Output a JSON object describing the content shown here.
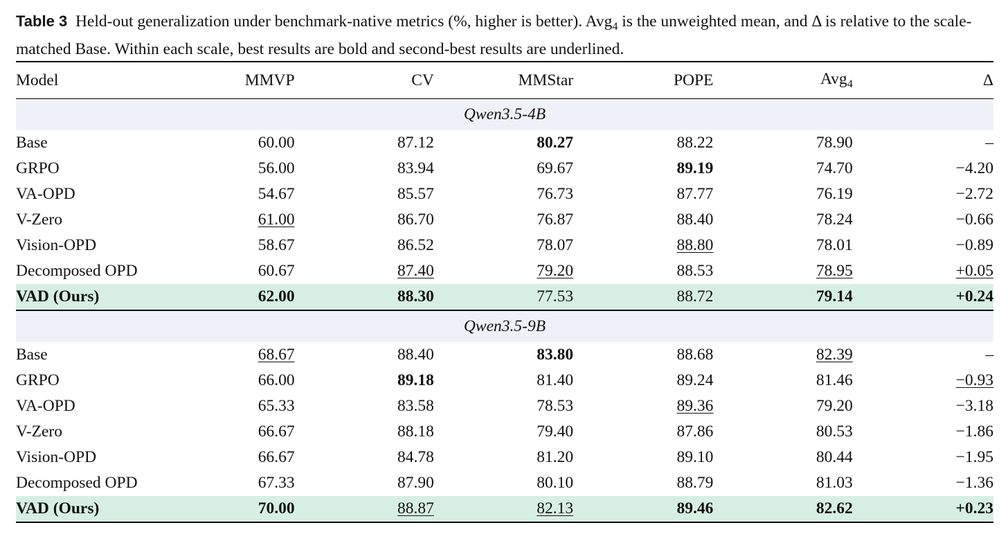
{
  "caption": {
    "label": "Table 3",
    "text_before_avg": "Held-out generalization under benchmark-native metrics (%, higher is better). ",
    "avg_base": "Avg",
    "avg_sub": "4",
    "text_after_avg": " is the unweighted mean, and Δ is relative to the scale-matched Base. Within each scale, best results are bold and second-best results are underlined."
  },
  "header": {
    "model": "Model",
    "mmvp": "MMVP",
    "cv": "CV",
    "mmstar": "MMStar",
    "pope": "POPE",
    "avg_base": "Avg",
    "avg_sub": "4",
    "delta": "Δ"
  },
  "groups": [
    {
      "title": "Qwen3.5-4B",
      "rows": [
        {
          "model": "Base",
          "mmvp": "60.00",
          "cv": "87.12",
          "mmstar": "80.27",
          "pope": "88.22",
          "avg": "78.90",
          "delta": "–"
        },
        {
          "model": "GRPO",
          "mmvp": "56.00",
          "cv": "83.94",
          "mmstar": "69.67",
          "pope": "89.19",
          "avg": "74.70",
          "delta": "−4.20"
        },
        {
          "model": "VA-OPD",
          "mmvp": "54.67",
          "cv": "85.57",
          "mmstar": "76.73",
          "pope": "87.77",
          "avg": "76.19",
          "delta": "−2.72"
        },
        {
          "model": "V-Zero",
          "mmvp": "61.00",
          "cv": "86.70",
          "mmstar": "76.87",
          "pope": "88.40",
          "avg": "78.24",
          "delta": "−0.66"
        },
        {
          "model": "Vision-OPD",
          "mmvp": "58.67",
          "cv": "86.52",
          "mmstar": "78.07",
          "pope": "88.80",
          "avg": "78.01",
          "delta": "−0.89"
        },
        {
          "model": "Decomposed OPD",
          "mmvp": "60.67",
          "cv": "87.40",
          "mmstar": "79.20",
          "pope": "88.53",
          "avg": "78.95",
          "delta": "+0.05"
        },
        {
          "model": "VAD (Ours)",
          "mmvp": "62.00",
          "cv": "88.30",
          "mmstar": "77.53",
          "pope": "88.72",
          "avg": "79.14",
          "delta": "+0.24"
        }
      ]
    },
    {
      "title": "Qwen3.5-9B",
      "rows": [
        {
          "model": "Base",
          "mmvp": "68.67",
          "cv": "88.40",
          "mmstar": "83.80",
          "pope": "88.68",
          "avg": "82.39",
          "delta": "–"
        },
        {
          "model": "GRPO",
          "mmvp": "66.00",
          "cv": "89.18",
          "mmstar": "81.40",
          "pope": "89.24",
          "avg": "81.46",
          "delta": "−0.93"
        },
        {
          "model": "VA-OPD",
          "mmvp": "65.33",
          "cv": "83.58",
          "mmstar": "78.53",
          "pope": "89.36",
          "avg": "79.20",
          "delta": "−3.18"
        },
        {
          "model": "V-Zero",
          "mmvp": "66.67",
          "cv": "88.18",
          "mmstar": "79.40",
          "pope": "87.86",
          "avg": "80.53",
          "delta": "−1.86"
        },
        {
          "model": "Vision-OPD",
          "mmvp": "66.67",
          "cv": "84.78",
          "mmstar": "81.20",
          "pope": "89.10",
          "avg": "80.44",
          "delta": "−1.95"
        },
        {
          "model": "Decomposed OPD",
          "mmvp": "67.33",
          "cv": "87.90",
          "mmstar": "80.10",
          "pope": "88.79",
          "avg": "81.03",
          "delta": "−1.36"
        },
        {
          "model": "VAD (Ours)",
          "mmvp": "70.00",
          "cv": "88.87",
          "mmstar": "82.13",
          "pope": "89.46",
          "avg": "82.62",
          "delta": "+0.23"
        }
      ]
    }
  ]
}
